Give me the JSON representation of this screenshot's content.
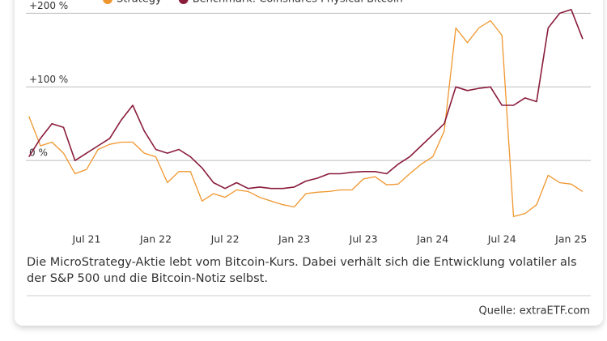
{
  "chart_data": {
    "type": "line",
    "caption": "Die MicroStrategy-Aktie lebt vom Bitcoin-Kurs. Dabei verhält sich die Entwicklung volatiler als der S&P 500 und die Bitcoin-Notiz selbst.",
    "source": "Quelle: extraETF.com",
    "x": [
      1,
      2,
      3,
      4,
      5,
      6,
      7,
      8,
      9,
      10,
      11,
      12,
      13,
      14,
      15,
      16,
      17,
      18,
      19,
      20,
      21,
      22,
      23,
      24,
      25,
      26,
      27,
      28,
      29,
      30,
      31,
      32,
      33,
      34,
      35,
      36,
      37,
      38,
      39,
      40,
      41,
      42,
      43,
      44,
      45,
      46,
      47,
      48,
      49
    ],
    "xlim": [
      0.74,
      49.7
    ],
    "xticks": [
      {
        "value": 6,
        "label": "Jul 21"
      },
      {
        "value": 12,
        "label": "Jan 22"
      },
      {
        "value": 18,
        "label": "Jul 22"
      },
      {
        "value": 24,
        "label": "Jan 23"
      },
      {
        "value": 30,
        "label": "Jul 23"
      },
      {
        "value": 36,
        "label": "Jan 24"
      },
      {
        "value": 42,
        "label": "Jul 24"
      },
      {
        "value": 48,
        "label": "Jan 25"
      }
    ],
    "ylim": [
      -90,
      218
    ],
    "yticks": [
      {
        "value": 0,
        "label": "0 %"
      },
      {
        "value": 100,
        "label": "+100 %"
      },
      {
        "value": 200,
        "label": "+200 %"
      }
    ],
    "grid": true,
    "series": [
      {
        "name": "Strategy",
        "color": "#f0962e",
        "values": [
          60,
          20,
          25,
          10,
          -18,
          -12,
          15,
          22,
          25,
          25,
          10,
          5,
          -30,
          -15,
          -15,
          -55,
          -45,
          -50,
          -40,
          -42,
          -50,
          -55,
          -60,
          -63,
          -45,
          -43,
          -42,
          -40,
          -40,
          -25,
          -22,
          -33,
          -32,
          -18,
          -5,
          5,
          40,
          180,
          160,
          180,
          190,
          170,
          -76,
          -72,
          -60,
          -20,
          -30,
          -32,
          -42
        ]
      },
      {
        "name": "Benchmark: Coinshares Physical Bitcoin",
        "color": "#8a1c3c",
        "values": [
          5,
          30,
          50,
          45,
          0,
          10,
          20,
          30,
          55,
          75,
          40,
          15,
          10,
          15,
          5,
          -10,
          -30,
          -38,
          -30,
          -38,
          -36,
          -38,
          -38,
          -36,
          -28,
          -24,
          -18,
          -18,
          -16,
          -15,
          -15,
          -18,
          -5,
          5,
          20,
          35,
          50,
          100,
          95,
          98,
          100,
          75,
          75,
          85,
          80,
          180,
          200,
          205,
          165
        ]
      }
    ]
  }
}
